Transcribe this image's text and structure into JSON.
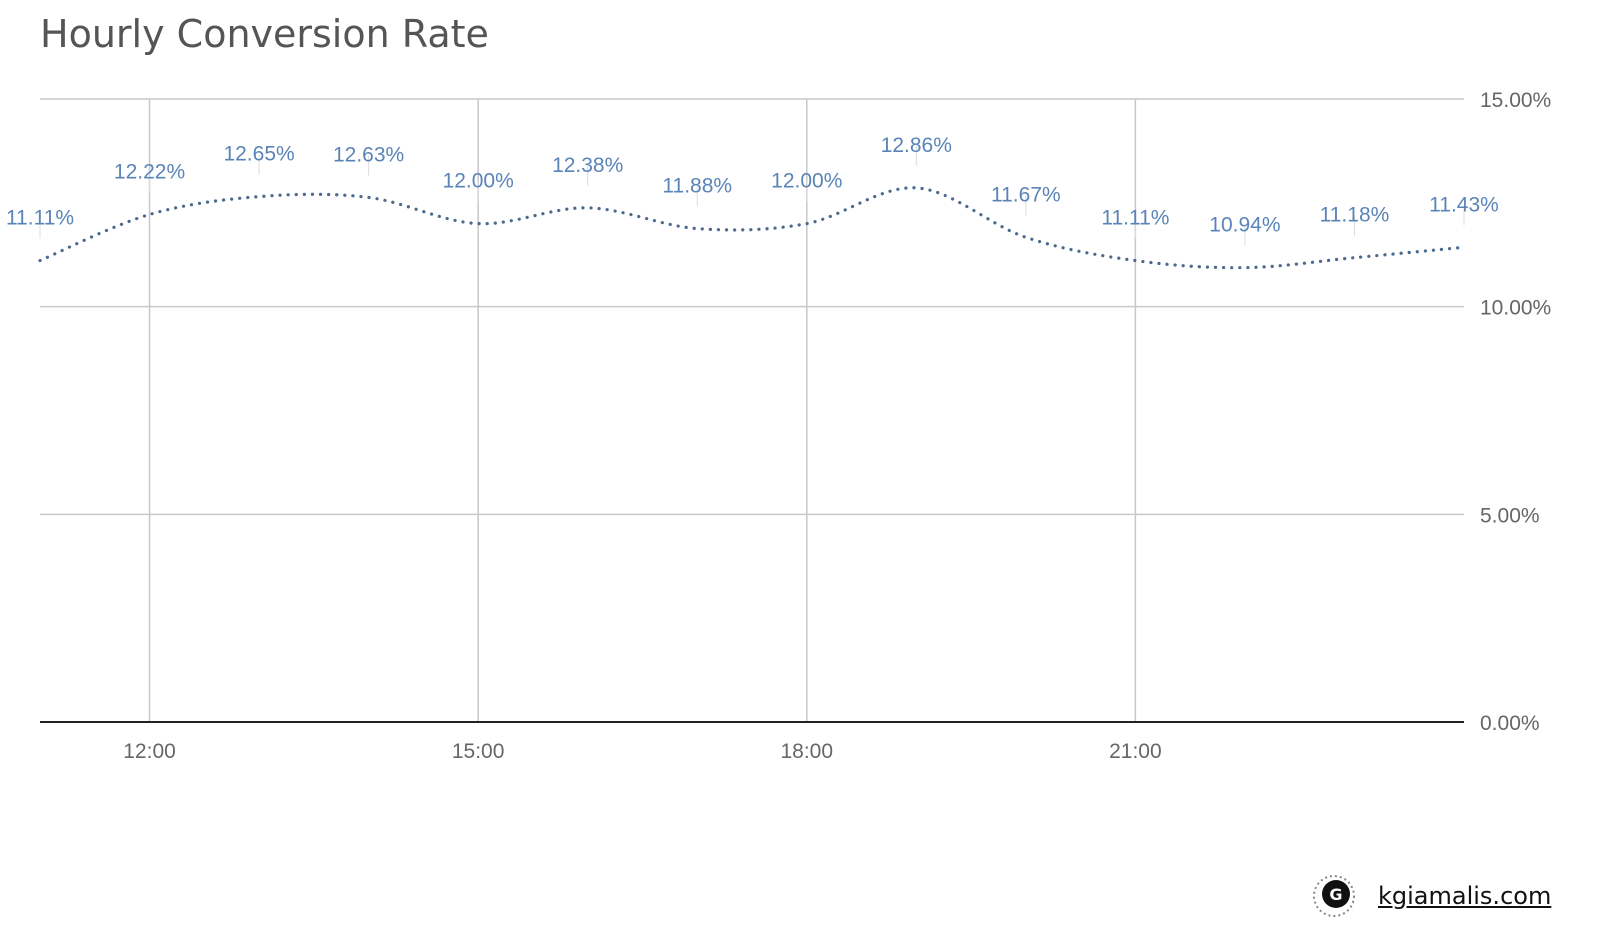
{
  "chart_data": {
    "type": "line",
    "title": "Hourly Conversion Rate",
    "x": [
      "11:00",
      "12:00",
      "13:00",
      "14:00",
      "15:00",
      "16:00",
      "17:00",
      "18:00",
      "19:00",
      "20:00",
      "21:00",
      "22:00",
      "23:00",
      "24:00"
    ],
    "x_tick_labels": [
      "12:00",
      "15:00",
      "18:00",
      "21:00"
    ],
    "series": [
      {
        "values": [
          11.11,
          12.22,
          12.65,
          12.63,
          12.0,
          12.38,
          11.88,
          12.0,
          12.86,
          11.67,
          11.11,
          10.94,
          11.18,
          11.43
        ],
        "data_labels": [
          "11.11%",
          "12.22%",
          "12.65%",
          "12.63%",
          "12.00%",
          "12.38%",
          "11.88%",
          "12.00%",
          "12.86%",
          "11.67%",
          "11.11%",
          "10.94%",
          "11.18%",
          "11.43%"
        ]
      }
    ],
    "ylim": [
      0,
      15
    ],
    "y_ticks": [
      "0.00%",
      "5.00%",
      "10.00%",
      "15.00%"
    ],
    "y_axis_side": "right",
    "line_style": "dotted smooth",
    "grid": true,
    "colors": {
      "line": "#4a6a8e",
      "label": "#5a84b8",
      "grid": "#c8c8c8",
      "axis": "#222222",
      "tick": "#666666"
    }
  },
  "footer": {
    "site": "kgiamalis.com",
    "logo_icon": "g-logo-icon"
  }
}
